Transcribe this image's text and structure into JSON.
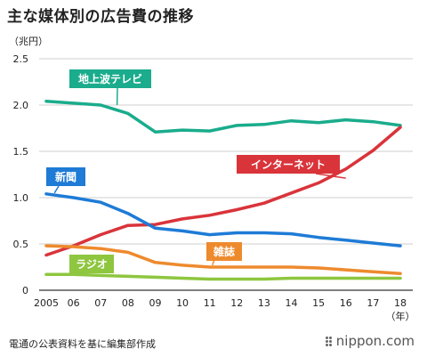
{
  "header": {
    "title": "主な媒体別の広告費の推移",
    "unit": "（兆円）"
  },
  "footer": {
    "source": "電通の公表資料を基に編集部作成",
    "brand": "nippon.com"
  },
  "chart_data": {
    "type": "line",
    "x": [
      "2005",
      "06",
      "07",
      "08",
      "09",
      "10",
      "11",
      "12",
      "13",
      "14",
      "15",
      "16",
      "17",
      "18"
    ],
    "x_suffix": "（年）",
    "ylim": [
      0,
      2.5
    ],
    "yticks": [
      "0",
      "0.5",
      "1.0",
      "1.5",
      "2.0",
      "2.5"
    ],
    "grid": true,
    "series": [
      {
        "name": "地上波テレビ",
        "color": "#1aac8c",
        "values": [
          2.04,
          2.02,
          2.0,
          1.91,
          1.71,
          1.73,
          1.72,
          1.78,
          1.79,
          1.83,
          1.81,
          1.84,
          1.82,
          1.78
        ]
      },
      {
        "name": "インターネット",
        "color": "#d9343a",
        "values": [
          0.38,
          0.48,
          0.6,
          0.7,
          0.71,
          0.77,
          0.81,
          0.87,
          0.94,
          1.05,
          1.16,
          1.31,
          1.51,
          1.76
        ]
      },
      {
        "name": "新聞",
        "color": "#1e7bd6",
        "values": [
          1.04,
          1.0,
          0.95,
          0.83,
          0.67,
          0.64,
          0.6,
          0.62,
          0.62,
          0.61,
          0.57,
          0.54,
          0.51,
          0.48
        ]
      },
      {
        "name": "雑誌",
        "color": "#ee8a2e",
        "values": [
          0.48,
          0.47,
          0.45,
          0.41,
          0.3,
          0.27,
          0.25,
          0.25,
          0.25,
          0.25,
          0.24,
          0.22,
          0.2,
          0.18
        ]
      },
      {
        "name": "ラジオ",
        "color": "#8ec63f",
        "values": [
          0.17,
          0.17,
          0.16,
          0.15,
          0.14,
          0.13,
          0.12,
          0.12,
          0.12,
          0.13,
          0.13,
          0.13,
          0.13,
          0.13
        ]
      }
    ]
  }
}
